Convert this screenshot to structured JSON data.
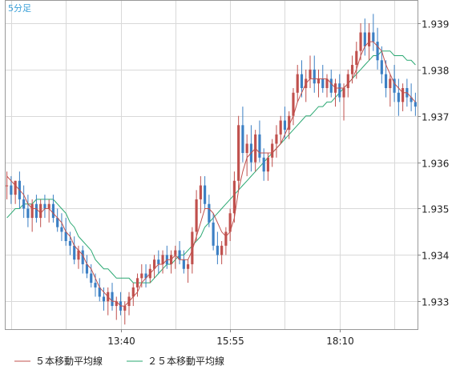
{
  "chart_data": {
    "type": "candlestick",
    "title": "5分足",
    "x_tick_labels": [
      "13:40",
      "15:55",
      "18:10"
    ],
    "y_tick_labels": [
      "1.939",
      "1.938",
      "1.937",
      "1.936",
      "1.935",
      "1.934",
      "1.933"
    ],
    "ylim": [
      1.9324,
      1.9395
    ],
    "grid": true,
    "legend_position": "bottom",
    "series": [
      {
        "name": "５本移動平均線",
        "type": "line",
        "color": "#c0504d"
      },
      {
        "name": "２５本移動平均線",
        "type": "line",
        "color": "#2aa872"
      }
    ],
    "candles_rising_color": "#c0504d",
    "candles_falling_color": "#3b7fc4",
    "candles": [
      [
        1.9355,
        1.9358,
        1.9352,
        1.9355
      ],
      [
        1.9355,
        1.9357,
        1.9351,
        1.9353
      ],
      [
        1.9353,
        1.9356,
        1.9351,
        1.9356
      ],
      [
        1.9356,
        1.9358,
        1.935,
        1.9352
      ],
      [
        1.9352,
        1.9355,
        1.9348,
        1.935
      ],
      [
        1.935,
        1.9353,
        1.9346,
        1.9348
      ],
      [
        1.9348,
        1.9352,
        1.9345,
        1.9351
      ],
      [
        1.9351,
        1.9353,
        1.9347,
        1.9348
      ],
      [
        1.9348,
        1.9352,
        1.9346,
        1.9351
      ],
      [
        1.9351,
        1.9353,
        1.9348,
        1.935
      ],
      [
        1.935,
        1.9352,
        1.9347,
        1.9351
      ],
      [
        1.9351,
        1.9353,
        1.9347,
        1.9348
      ],
      [
        1.9348,
        1.935,
        1.9345,
        1.9346
      ],
      [
        1.9346,
        1.9349,
        1.9343,
        1.9345
      ],
      [
        1.9345,
        1.9348,
        1.9342,
        1.9343
      ],
      [
        1.9343,
        1.9345,
        1.934,
        1.9342
      ],
      [
        1.9342,
        1.9344,
        1.9338,
        1.9339
      ],
      [
        1.9339,
        1.9342,
        1.9337,
        1.9341
      ],
      [
        1.9341,
        1.9342,
        1.9336,
        1.9338
      ],
      [
        1.9338,
        1.934,
        1.9335,
        1.9336
      ],
      [
        1.9336,
        1.9338,
        1.9333,
        1.9334
      ],
      [
        1.9334,
        1.9336,
        1.9331,
        1.9333
      ],
      [
        1.9333,
        1.9335,
        1.933,
        1.9331
      ],
      [
        1.9331,
        1.9333,
        1.9328,
        1.933
      ],
      [
        1.933,
        1.9333,
        1.9327,
        1.9332
      ],
      [
        1.9332,
        1.9334,
        1.9328,
        1.9329
      ],
      [
        1.9329,
        1.9331,
        1.9326,
        1.933
      ],
      [
        1.933,
        1.9332,
        1.9327,
        1.9328
      ],
      [
        1.9328,
        1.933,
        1.9325,
        1.9329
      ],
      [
        1.9329,
        1.9332,
        1.9327,
        1.9331
      ],
      [
        1.9331,
        1.9334,
        1.9329,
        1.9333
      ],
      [
        1.9333,
        1.9336,
        1.9331,
        1.9335
      ],
      [
        1.9335,
        1.9338,
        1.9333,
        1.9336
      ],
      [
        1.9336,
        1.9338,
        1.9333,
        1.9335
      ],
      [
        1.9335,
        1.9338,
        1.9334,
        1.9337
      ],
      [
        1.9337,
        1.934,
        1.9335,
        1.9339
      ],
      [
        1.9339,
        1.9341,
        1.9336,
        1.9338
      ],
      [
        1.9338,
        1.9341,
        1.9336,
        1.934
      ],
      [
        1.934,
        1.9342,
        1.9337,
        1.9338
      ],
      [
        1.9338,
        1.9341,
        1.9336,
        1.934
      ],
      [
        1.934,
        1.9342,
        1.9337,
        1.9341
      ],
      [
        1.9341,
        1.9343,
        1.9338,
        1.9339
      ],
      [
        1.9339,
        1.9341,
        1.9336,
        1.9337
      ],
      [
        1.9337,
        1.9339,
        1.9334,
        1.9338
      ],
      [
        1.9338,
        1.9346,
        1.9336,
        1.9345
      ],
      [
        1.9345,
        1.9354,
        1.9343,
        1.9352
      ],
      [
        1.9352,
        1.9357,
        1.9349,
        1.9355
      ],
      [
        1.9355,
        1.9357,
        1.935,
        1.9351
      ],
      [
        1.9351,
        1.9353,
        1.9346,
        1.9347
      ],
      [
        1.9347,
        1.9349,
        1.9341,
        1.9342
      ],
      [
        1.9342,
        1.9345,
        1.9338,
        1.934
      ],
      [
        1.934,
        1.9343,
        1.9338,
        1.9342
      ],
      [
        1.9342,
        1.9346,
        1.934,
        1.9345
      ],
      [
        1.9345,
        1.935,
        1.9343,
        1.9349
      ],
      [
        1.9349,
        1.9358,
        1.9347,
        1.9356
      ],
      [
        1.9356,
        1.937,
        1.9354,
        1.9368
      ],
      [
        1.9368,
        1.9372,
        1.936,
        1.9362
      ],
      [
        1.9362,
        1.9366,
        1.9357,
        1.9364
      ],
      [
        1.9364,
        1.9368,
        1.9358,
        1.936
      ],
      [
        1.936,
        1.9367,
        1.9358,
        1.9366
      ],
      [
        1.9366,
        1.9369,
        1.936,
        1.9361
      ],
      [
        1.9361,
        1.9363,
        1.9356,
        1.9358
      ],
      [
        1.9358,
        1.9362,
        1.9356,
        1.9361
      ],
      [
        1.9361,
        1.9365,
        1.9359,
        1.9364
      ],
      [
        1.9364,
        1.9368,
        1.9361,
        1.9366
      ],
      [
        1.9366,
        1.937,
        1.9364,
        1.9369
      ],
      [
        1.9369,
        1.9372,
        1.9365,
        1.9367
      ],
      [
        1.9367,
        1.9371,
        1.9365,
        1.937
      ],
      [
        1.937,
        1.9376,
        1.9368,
        1.9375
      ],
      [
        1.9375,
        1.9381,
        1.9373,
        1.9379
      ],
      [
        1.9379,
        1.9382,
        1.9374,
        1.9376
      ],
      [
        1.9376,
        1.938,
        1.9373,
        1.9378
      ],
      [
        1.9378,
        1.9383,
        1.9376,
        1.938
      ],
      [
        1.938,
        1.9383,
        1.9375,
        1.9377
      ],
      [
        1.9377,
        1.938,
        1.9374,
        1.9378
      ],
      [
        1.9378,
        1.9381,
        1.9375,
        1.9376
      ],
      [
        1.9376,
        1.9379,
        1.9374,
        1.9378
      ],
      [
        1.9378,
        1.938,
        1.9374,
        1.9375
      ],
      [
        1.9375,
        1.9378,
        1.9372,
        1.9377
      ],
      [
        1.9377,
        1.9379,
        1.9373,
        1.9374
      ],
      [
        1.9374,
        1.9377,
        1.9369,
        1.9376
      ],
      [
        1.9376,
        1.938,
        1.9374,
        1.9379
      ],
      [
        1.9379,
        1.9383,
        1.9377,
        1.9381
      ],
      [
        1.9381,
        1.9386,
        1.9378,
        1.9384
      ],
      [
        1.9384,
        1.939,
        1.9382,
        1.9388
      ],
      [
        1.9388,
        1.9391,
        1.9383,
        1.9385
      ],
      [
        1.9385,
        1.939,
        1.9382,
        1.9388
      ],
      [
        1.9388,
        1.9392,
        1.9384,
        1.9386
      ],
      [
        1.9386,
        1.9389,
        1.938,
        1.9382
      ],
      [
        1.9382,
        1.9385,
        1.9377,
        1.9379
      ],
      [
        1.9379,
        1.9382,
        1.9374,
        1.9376
      ],
      [
        1.9376,
        1.9379,
        1.9372,
        1.9378
      ],
      [
        1.9378,
        1.9381,
        1.9373,
        1.9375
      ],
      [
        1.9375,
        1.9378,
        1.937,
        1.9373
      ],
      [
        1.9373,
        1.9377,
        1.9371,
        1.9376
      ],
      [
        1.9376,
        1.9378,
        1.9372,
        1.9374
      ],
      [
        1.9374,
        1.9377,
        1.9371,
        1.9373
      ],
      [
        1.9373,
        1.9375,
        1.937,
        1.9372
      ]
    ],
    "ma5": [
      1.9357,
      1.9356,
      1.9355,
      1.9354,
      1.9353,
      1.9351,
      1.935,
      1.935,
      1.9349,
      1.935,
      1.935,
      1.9349,
      1.9348,
      1.9347,
      1.9345,
      1.9344,
      1.9342,
      1.9341,
      1.934,
      1.9338,
      1.9337,
      1.9335,
      1.9333,
      1.9332,
      1.9331,
      1.933,
      1.933,
      1.9329,
      1.9329,
      1.933,
      1.9331,
      1.9332,
      1.9334,
      1.9335,
      1.9336,
      1.9337,
      1.9338,
      1.9338,
      1.9339,
      1.9339,
      1.934,
      1.9339,
      1.9339,
      1.9339,
      1.9341,
      1.9344,
      1.9347,
      1.935,
      1.935,
      1.9349,
      1.9347,
      1.9345,
      1.9344,
      1.9345,
      1.9348,
      1.9354,
      1.9358,
      1.9361,
      1.9362,
      1.9363,
      1.9362,
      1.9362,
      1.9362,
      1.9362,
      1.9363,
      1.9364,
      1.9366,
      1.9368,
      1.937,
      1.9373,
      1.9375,
      1.9377,
      1.9378,
      1.9378,
      1.9378,
      1.9378,
      1.9378,
      1.9377,
      1.9376,
      1.9376,
      1.9376,
      1.9377,
      1.9378,
      1.938,
      1.9383,
      1.9385,
      1.9386,
      1.9386,
      1.9385,
      1.9384,
      1.9381,
      1.9379,
      1.9377,
      1.9376,
      1.9375,
      1.9375,
      1.9374,
      1.9373
    ],
    "ma25": [
      1.9348,
      1.9349,
      1.935,
      1.935,
      1.9351,
      1.9351,
      1.9351,
      1.9352,
      1.9352,
      1.9352,
      1.9352,
      1.9352,
      1.9351,
      1.935,
      1.9349,
      1.9347,
      1.9346,
      1.9344,
      1.9343,
      1.9342,
      1.9341,
      1.9339,
      1.9338,
      1.9337,
      1.9337,
      1.9336,
      1.9335,
      1.9335,
      1.9335,
      1.9335,
      1.9334,
      1.9334,
      1.9334,
      1.9334,
      1.9334,
      1.9335,
      1.9336,
      1.9337,
      1.9338,
      1.9338,
      1.9339,
      1.934,
      1.934,
      1.9341,
      1.9342,
      1.9343,
      1.9344,
      1.9346,
      1.9347,
      1.9348,
      1.9349,
      1.935,
      1.9351,
      1.9352,
      1.9353,
      1.9354,
      1.9355,
      1.9356,
      1.9357,
      1.9358,
      1.9359,
      1.936,
      1.9361,
      1.9362,
      1.9363,
      1.9364,
      1.9365,
      1.9366,
      1.9367,
      1.9368,
      1.9369,
      1.937,
      1.937,
      1.9371,
      1.9372,
      1.9372,
      1.9373,
      1.9373,
      1.9374,
      1.9375,
      1.9376,
      1.9377,
      1.9378,
      1.9379,
      1.938,
      1.9381,
      1.9382,
      1.9383,
      1.9383,
      1.9384,
      1.9384,
      1.9384,
      1.9383,
      1.9383,
      1.9383,
      1.9382,
      1.9382,
      1.9381
    ]
  }
}
